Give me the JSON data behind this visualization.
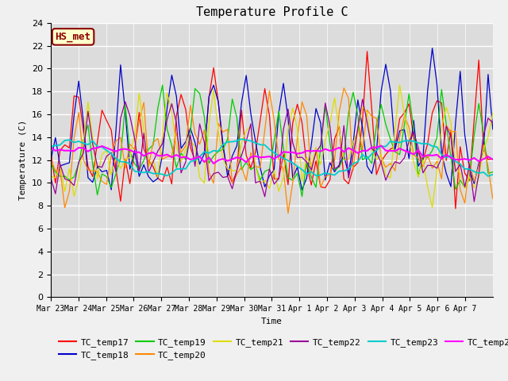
{
  "title": "Temperature Profile C",
  "xlabel": "Time",
  "ylabel": "Temperature (C)",
  "ylim": [
    0,
    24
  ],
  "yticks": [
    0,
    2,
    4,
    6,
    8,
    10,
    12,
    14,
    16,
    18,
    20,
    22,
    24
  ],
  "annotation": "HS_met",
  "background_color": "#dcdcdc",
  "fig_facecolor": "#f0f0f0",
  "series_colors": {
    "TC_temp17": "#ff0000",
    "TC_temp18": "#0000cc",
    "TC_temp19": "#00cc00",
    "TC_temp20": "#ff8800",
    "TC_temp21": "#dddd00",
    "TC_temp22": "#990099",
    "TC_temp23": "#00cccc",
    "TC_temp24": "#ff00ff"
  },
  "date_labels": [
    "Mar 23",
    "Mar 24",
    "Mar 25",
    "Mar 26",
    "Mar 27",
    "Mar 28",
    "Mar 29",
    "Mar 30",
    "Mar 31",
    "Apr 1",
    "Apr 2",
    "Apr 3",
    "Apr 4",
    "Apr 5",
    "Apr 6",
    "Apr 7"
  ]
}
